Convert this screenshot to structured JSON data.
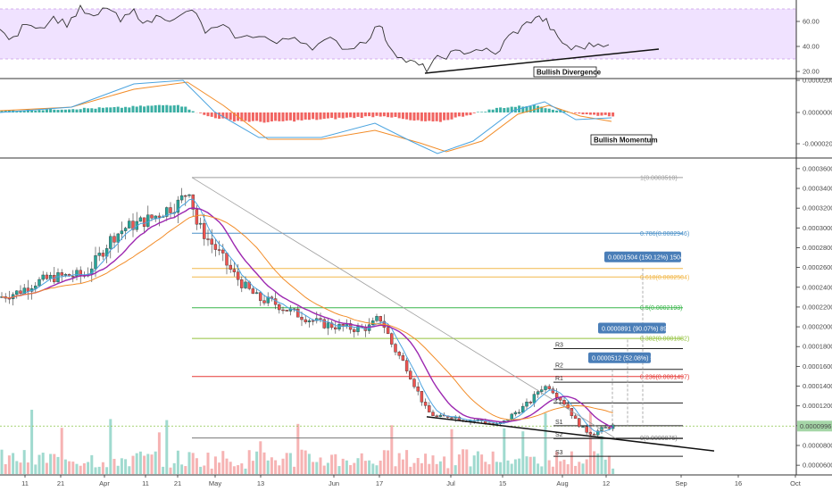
{
  "chart_data": {
    "type": "candlestick",
    "xaxis_labels": [
      "11",
      "21",
      "Apr",
      "11",
      "21",
      "May",
      "13",
      "Jun",
      "17",
      "Jul",
      "15",
      "Aug",
      "12",
      "Sep",
      "16",
      "Oct"
    ],
    "rsi": {
      "ticks": [
        "60.00",
        "40.00",
        "20.00"
      ],
      "band": [
        30,
        70
      ],
      "annotation": "Bullish Divergence"
    },
    "macd": {
      "ticks": [
        "0.0000200",
        "0.0000000",
        "-0.0000200"
      ],
      "annotation": "Bullish Momentum"
    },
    "price": {
      "ticks": [
        "0.0003600",
        "0.0003400",
        "0.0003200",
        "0.0003000",
        "0.0002800",
        "0.0002600",
        "0.0002400",
        "0.0002200",
        "0.0002000",
        "0.0001800",
        "0.0001600",
        "0.0001400",
        "0.0001200",
        "0.0001000",
        "0.0000800",
        "0.0000600"
      ],
      "ylim": [
        5.2e-05,
        0.000368
      ],
      "current": "0.0000996",
      "current_value": 9.96e-05,
      "fib_levels": [
        {
          "label": "1(0.0003510)",
          "value": 0.000351,
          "color": "#9e9e9e"
        },
        {
          "label": "0.786(0.0002946)",
          "value": 0.0002946,
          "color": "#4a90c8"
        },
        {
          "label": "0.618(0.0002504)",
          "value": 0.0002504,
          "color": "#f2b84b"
        },
        {
          "label": "0.5(0.0002193)",
          "value": 0.0002193,
          "color": "#39b54a"
        },
        {
          "label": "0.382(0.0001882)",
          "value": 0.0001882,
          "color": "#93c23c"
        },
        {
          "label": "0.236(0.0001497)",
          "value": 0.0001497,
          "color": "#e53935"
        },
        {
          "label": "0(0.0000876)",
          "value": 8.76e-05,
          "color": "#777777"
        }
      ],
      "extra_level": 0.000259,
      "pivots": [
        {
          "label": "R3",
          "value": 0.000178
        },
        {
          "label": "R2",
          "value": 0.000157
        },
        {
          "label": "R1",
          "value": 0.000144
        },
        {
          "label": "P",
          "value": 0.000123
        },
        {
          "label": "S1",
          "value": 0.0001
        },
        {
          "label": "S2",
          "value": 8.7e-05
        },
        {
          "label": "S3",
          "value": 6.9e-05
        }
      ],
      "targets": [
        {
          "label": "0.0001504 (150.12%) 1504"
        },
        {
          "label": "0.0000891 (90.07%) 891"
        },
        {
          "label": "0.0000512 (52.08%) 512"
        }
      ]
    }
  }
}
